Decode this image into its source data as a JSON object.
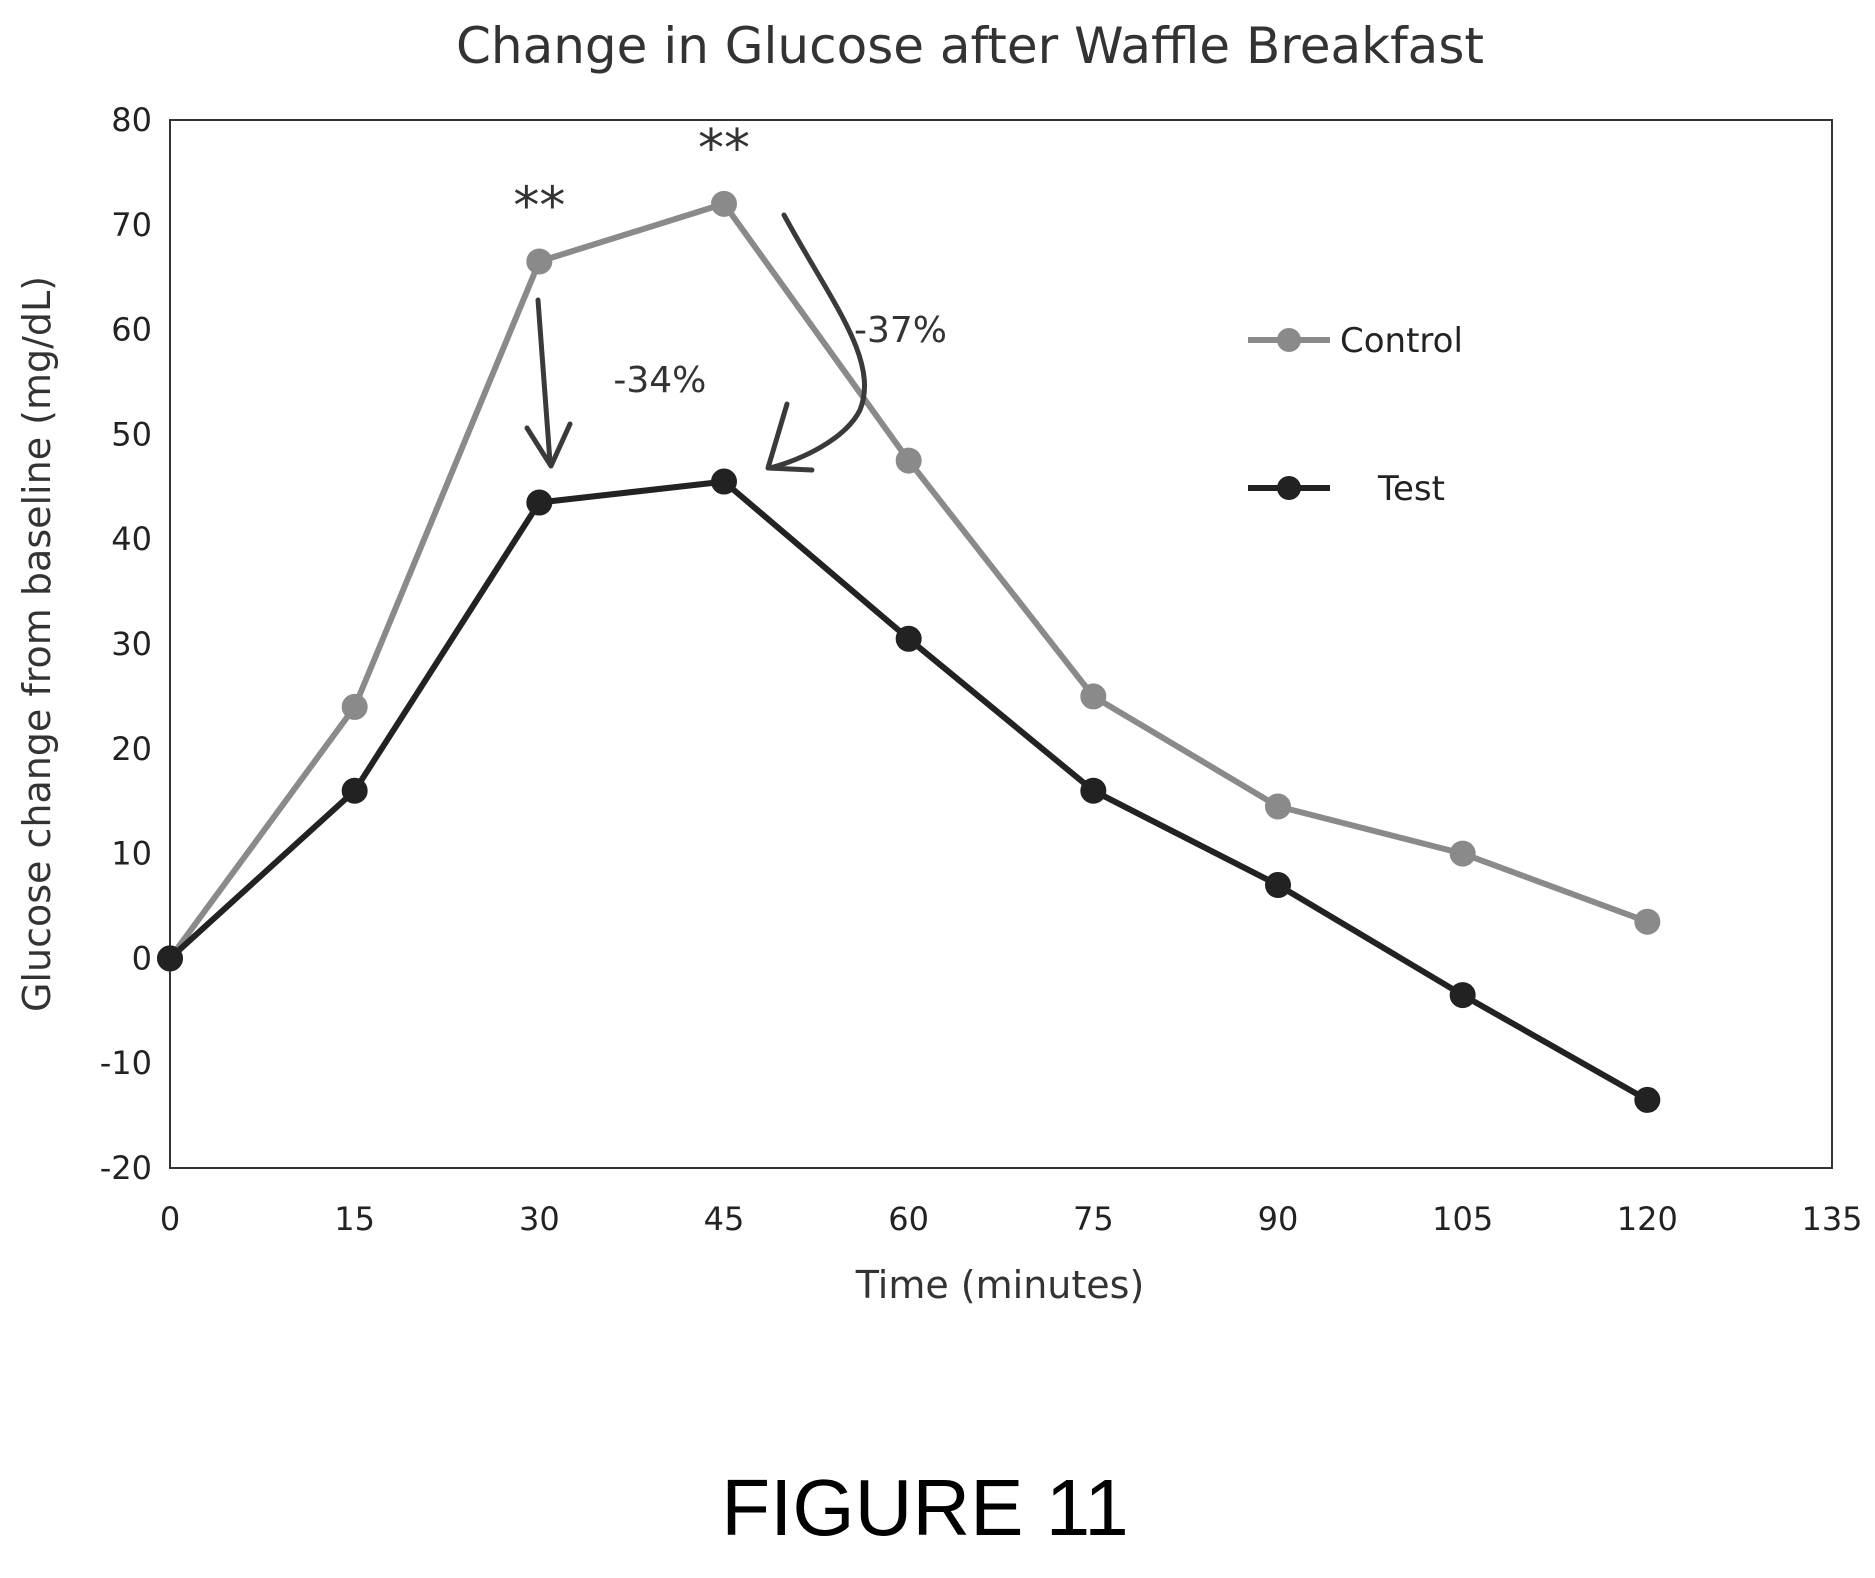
{
  "chart_data": {
    "type": "line",
    "title": "Change in Glucose after Waffle Breakfast",
    "xlabel": "Time (minutes)",
    "ylabel": "Glucose change from baseline (mg/dL)",
    "xlim": [
      0,
      135
    ],
    "ylim": [
      -20,
      80
    ],
    "xticks": [
      0,
      15,
      30,
      45,
      60,
      75,
      90,
      105,
      120,
      135
    ],
    "yticks": [
      -20,
      -10,
      0,
      10,
      20,
      30,
      40,
      50,
      60,
      70,
      80
    ],
    "grid": false,
    "legend_position": "right",
    "x": [
      0,
      15,
      30,
      45,
      60,
      75,
      90,
      105,
      120
    ],
    "series": [
      {
        "name": "Control",
        "color": "#8a8a8a",
        "values": [
          0,
          24,
          66.5,
          72,
          47.5,
          25,
          14.5,
          10,
          3.5
        ]
      },
      {
        "name": "Test",
        "color": "#222222",
        "values": [
          0,
          16,
          43.5,
          45.5,
          30.5,
          16,
          7,
          -3.5,
          -13.5
        ]
      }
    ],
    "annotations": [
      {
        "text": "**",
        "x": 30,
        "near_series": "Control"
      },
      {
        "text": "**",
        "x": 45,
        "near_series": "Control"
      },
      {
        "text": "-34%",
        "x": 30
      },
      {
        "text": "-37%",
        "x": 45
      }
    ]
  },
  "caption": "FIGURE 11"
}
